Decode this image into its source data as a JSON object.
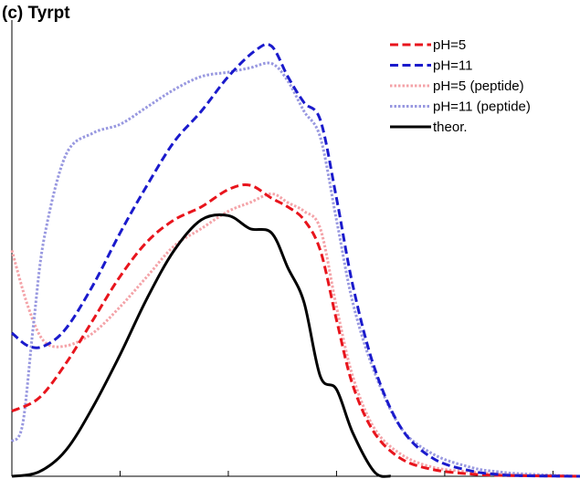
{
  "chart_data": {
    "type": "line",
    "title": "(c) Tyrpt",
    "xlabel": "",
    "ylabel": "",
    "xlim": [
      0,
      10.5
    ],
    "ylim": [
      0,
      1.05
    ],
    "grid": false,
    "legend_position": "top-right",
    "series": [
      {
        "name": "pH=5",
        "color": "#e8141c",
        "style": "dashed",
        "x": [
          0,
          0.5,
          1.0,
          1.5,
          2.0,
          2.5,
          3.0,
          3.5,
          4.0,
          4.4,
          4.8,
          5.1,
          5.4,
          5.7,
          6.0,
          6.3,
          6.7,
          7.2,
          7.8,
          8.5,
          9.0,
          9.6,
          10.5
        ],
        "y": [
          0.15,
          0.18,
          0.26,
          0.36,
          0.46,
          0.54,
          0.59,
          0.62,
          0.66,
          0.67,
          0.64,
          0.62,
          0.59,
          0.52,
          0.36,
          0.21,
          0.1,
          0.04,
          0.015,
          0.005,
          0.002,
          0.001,
          0.0
        ]
      },
      {
        "name": "pH=11",
        "color": "#1a1acc",
        "style": "dashed",
        "x": [
          0,
          0.3,
          0.6,
          1.0,
          1.5,
          2.0,
          2.5,
          3.0,
          3.5,
          4.0,
          4.5,
          4.8,
          5.1,
          5.4,
          5.7,
          6.0,
          6.3,
          6.7,
          7.2,
          7.8,
          8.5,
          9.0,
          9.5,
          10.5
        ],
        "y": [
          0.33,
          0.3,
          0.3,
          0.34,
          0.44,
          0.56,
          0.67,
          0.77,
          0.84,
          0.92,
          0.98,
          0.99,
          0.92,
          0.86,
          0.82,
          0.64,
          0.44,
          0.25,
          0.11,
          0.04,
          0.012,
          0.004,
          0.001,
          0.0
        ]
      },
      {
        "name": "pH=5 (peptide)",
        "color": "#f4a3a8",
        "style": "dotted",
        "x": [
          0,
          0.3,
          0.6,
          1.0,
          1.5,
          2.0,
          2.5,
          3.0,
          3.5,
          4.0,
          4.4,
          4.8,
          5.1,
          5.4,
          5.7,
          6.0,
          6.3,
          6.7,
          7.2,
          7.8,
          8.5,
          9.0,
          9.6,
          10.5
        ],
        "y": [
          0.52,
          0.39,
          0.31,
          0.3,
          0.33,
          0.39,
          0.46,
          0.53,
          0.57,
          0.61,
          0.63,
          0.65,
          0.63,
          0.61,
          0.57,
          0.39,
          0.23,
          0.11,
          0.05,
          0.02,
          0.01,
          0.005,
          0.002,
          0.0
        ]
      },
      {
        "name": "pH=11 (peptide)",
        "color": "#9898e0",
        "style": "dotted",
        "x": [
          0,
          0.2,
          0.4,
          0.6,
          1.0,
          1.5,
          2.0,
          2.5,
          3.0,
          3.5,
          4.0,
          4.4,
          4.8,
          5.1,
          5.4,
          5.7,
          6.0,
          6.3,
          6.7,
          7.2,
          7.8,
          8.5,
          9.0,
          9.5,
          10.5
        ],
        "y": [
          0.08,
          0.12,
          0.35,
          0.55,
          0.74,
          0.79,
          0.81,
          0.85,
          0.89,
          0.92,
          0.93,
          0.94,
          0.95,
          0.91,
          0.84,
          0.78,
          0.59,
          0.4,
          0.24,
          0.11,
          0.05,
          0.02,
          0.01,
          0.005,
          0.0
        ]
      },
      {
        "name": "theor.",
        "color": "#000000",
        "style": "solid",
        "x": [
          0,
          0.5,
          1.0,
          1.5,
          2.0,
          2.5,
          3.0,
          3.5,
          4.0,
          4.4,
          4.8,
          5.1,
          5.4,
          5.7,
          6.0,
          6.3,
          6.7,
          7.0
        ],
        "y": [
          0.0,
          0.01,
          0.06,
          0.16,
          0.28,
          0.41,
          0.52,
          0.59,
          0.6,
          0.57,
          0.56,
          0.48,
          0.4,
          0.23,
          0.2,
          0.1,
          0.01,
          0.0
        ]
      }
    ]
  }
}
